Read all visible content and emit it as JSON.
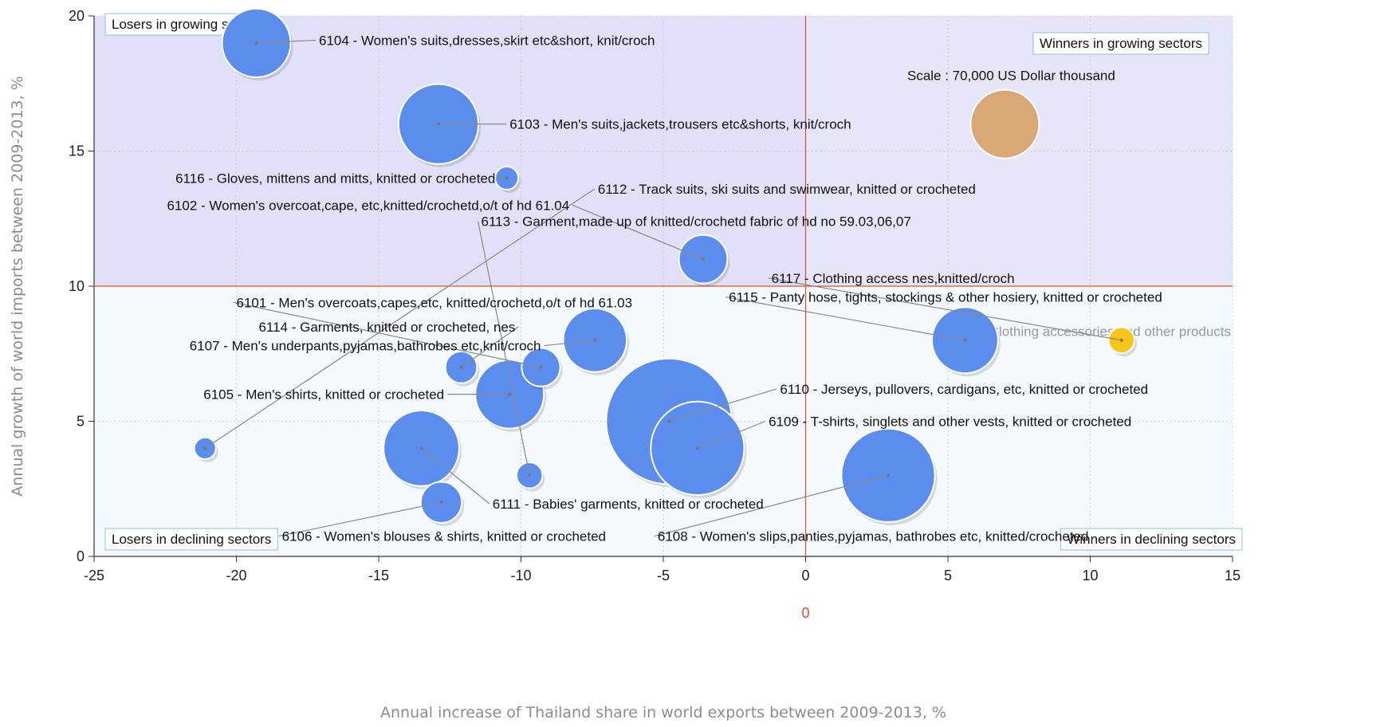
{
  "chart_data": {
    "type": "scatter",
    "xlabel": "Annual increase of Thailand share in world exports between 2009-2013, %",
    "ylabel": "Annual growth of world imports between 2009-2013, %",
    "xlim": [
      -25,
      15
    ],
    "ylim": [
      0,
      20
    ],
    "x_ticks": [
      "-25",
      "-20",
      "-15",
      "-10",
      "-5",
      "0",
      "5",
      "10",
      "15"
    ],
    "y_ticks": [
      "0",
      "5",
      "10",
      "15",
      "20"
    ],
    "reference_lines": {
      "x": 0,
      "y": 10,
      "x_label": "0",
      "y_label": "10",
      "color": "#e0502a"
    },
    "quadrants": {
      "top_left": "Losers in growing sectors",
      "top_right": "Winners in growing sectors",
      "bottom_left": "Losers in declining sectors",
      "bottom_right": "Winners in declining sectors"
    },
    "scale": {
      "text": "Scale : 70,000 US Dollar thousand",
      "value": 70000,
      "color": "#d9a877",
      "x": 7,
      "y": 16
    },
    "legend_text": "Clothing accessories and other products",
    "grid": true,
    "colors": {
      "bubble": "#5b8def",
      "highlight": "#f5c518",
      "growing_bg": "#e6e6f9",
      "declining_bg": "#f4f9fd",
      "quadrant_box": "#87bfe0"
    },
    "points": [
      {
        "label": "6104 - Women's suits,dresses,skirt etc&short, knit/croch",
        "x": -19.3,
        "y": 19,
        "size": 70000
      },
      {
        "label": "6103 - Men's suits,jackets,trousers etc&shorts, knit/croch",
        "x": -12.9,
        "y": 16,
        "size": 95000
      },
      {
        "label": "6116 - Gloves, mittens and mitts, knitted or crocheted",
        "x": -10.5,
        "y": 14,
        "size": 8000
      },
      {
        "label": "6112 - Track suits, ski suits and swimwear, knitted or crocheted",
        "x": -21.1,
        "y": 4,
        "size": 7000
      },
      {
        "label": "6102 - Women's overcoat,cape, etc,knitted/crochetd,o/t of hd 61.04",
        "x": -3.6,
        "y": 11,
        "size": 35000
      },
      {
        "label": "6113 - Garment,made up of knitted/crochetd fabric of hd no 59.03,06,07",
        "x": -9.7,
        "y": 3,
        "size": 10000
      },
      {
        "label": "6117 - Clothing access nes,knitted/croch",
        "x": 11.1,
        "y": 8,
        "size": 10000,
        "highlight": true
      },
      {
        "label": "6115 - Panty hose, tights, stockings & other hosiery, knitted or crocheted",
        "x": 5.6,
        "y": 8,
        "size": 65000
      },
      {
        "label": "6101 - Men's overcoats,capes,etc, knitted/crochetd,o/t of hd 61.03",
        "x": -9.3,
        "y": 7,
        "size": 22000
      },
      {
        "label": "6114 - Garments, knitted or crocheted, nes",
        "x": -12.1,
        "y": 7,
        "size": 15000
      },
      {
        "label": "6107 - Men's underpants,pyjamas,bathrobes etc,knit/croch",
        "x": -7.4,
        "y": 8,
        "size": 60000
      },
      {
        "label": "6105 - Men's shirts, knitted or crocheted",
        "x": -10.4,
        "y": 6,
        "size": 70000
      },
      {
        "label": "6110 - Jerseys, pullovers, cardigans, etc, knitted or crocheted",
        "x": -4.8,
        "y": 5,
        "size": 235000
      },
      {
        "label": "6109 - T-shirts, singlets and other vests, knitted or crocheted",
        "x": -3.8,
        "y": 4,
        "size": 130000
      },
      {
        "label": "6111 - Babies' garments, knitted or crocheted",
        "x": -13.5,
        "y": 4,
        "size": 85000
      },
      {
        "label": "6106 - Women's blouses & shirts, knitted or crocheted",
        "x": -12.8,
        "y": 2,
        "size": 25000
      },
      {
        "label": "6108 - Women's slips,panties,pyjamas, bathrobes etc, knitted/crocheted",
        "x": 2.9,
        "y": 3,
        "size": 130000
      }
    ]
  }
}
